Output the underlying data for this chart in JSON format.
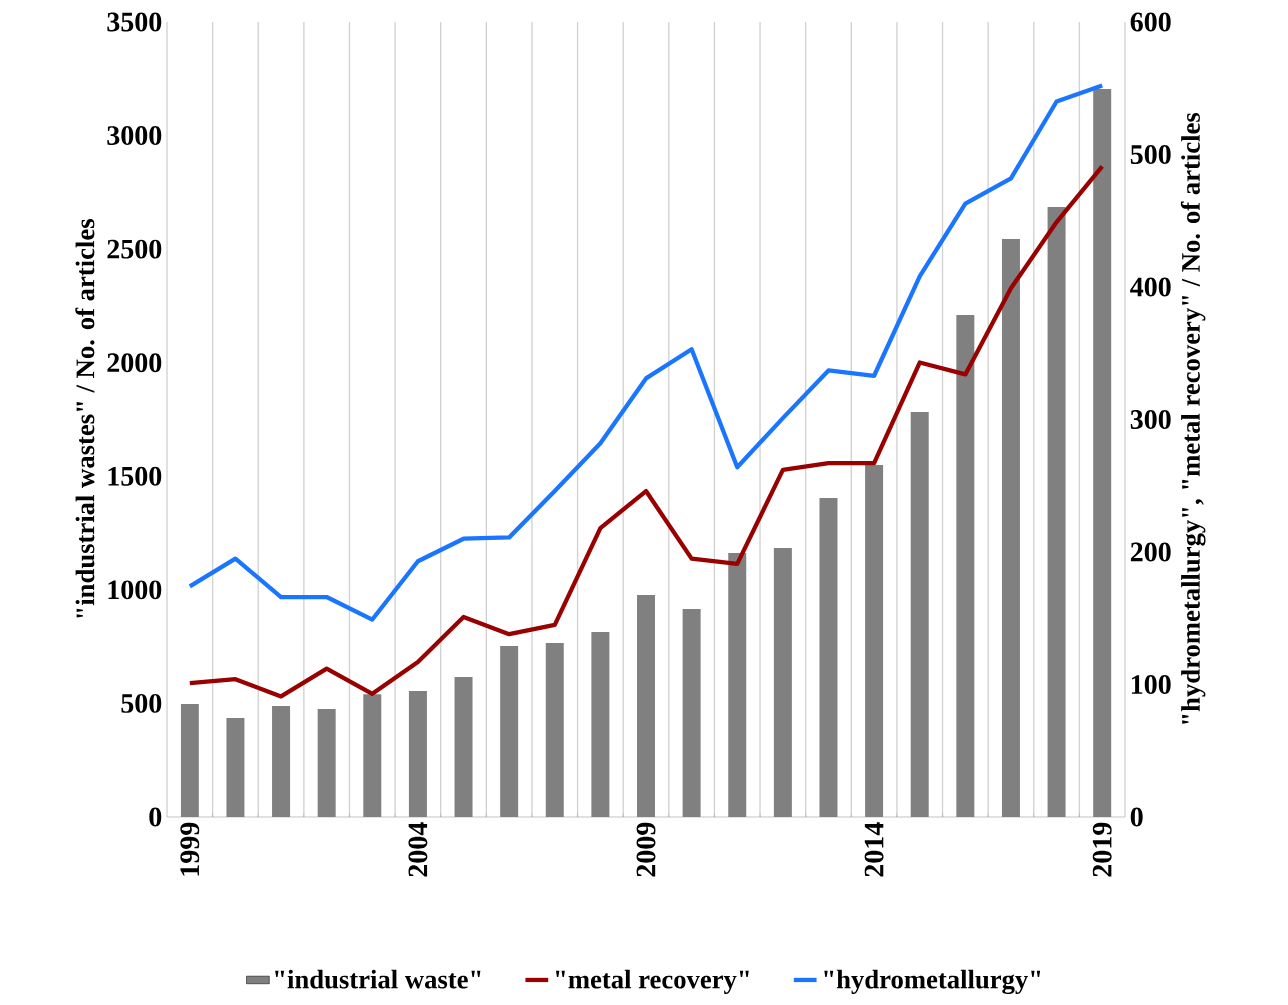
{
  "chart_data": {
    "type": "bar",
    "ylabel": "\"industrial wastes\" / No. of articles",
    "y2label": "\"hydrometallurgy\", \"metal recovery\" / No. of articles",
    "categories": [
      "1999",
      null,
      null,
      null,
      null,
      "2004",
      null,
      null,
      null,
      null,
      "2009",
      null,
      null,
      null,
      null,
      "2014",
      null,
      null,
      null,
      null,
      "2019"
    ],
    "series": [
      {
        "name": "\"industrial waste\"",
        "color": "#808080",
        "values": [
          497,
          436,
          489,
          475,
          540,
          555,
          616,
          753,
          766,
          814,
          977,
          916,
          1162,
          1184,
          1404,
          1550,
          1783,
          2210,
          2545,
          2685,
          3205
        ]
      },
      {
        "name": "\"metal recovery\"",
        "type": "line",
        "axis": "y2",
        "color": "#990000",
        "values": [
          101,
          104,
          91,
          112,
          93,
          117,
          151,
          138,
          145,
          218,
          246,
          195,
          191,
          262,
          267,
          267,
          343,
          334,
          399,
          449,
          491
        ]
      },
      {
        "name": "\"hydrometallurgy\"",
        "type": "line",
        "axis": "y2",
        "color": "#1a75ff",
        "values": [
          174,
          195,
          166,
          166,
          149,
          193,
          210,
          211,
          246,
          282,
          331,
          353,
          264,
          301,
          337,
          333,
          408,
          463,
          482,
          540,
          552
        ]
      }
    ],
    "ylim": [
      0,
      3500
    ],
    "yticks": [
      0,
      500,
      1000,
      1500,
      2000,
      2500,
      3000,
      3500
    ],
    "y2lim": [
      0,
      600
    ],
    "y2ticks": [
      0,
      100,
      200,
      300,
      400,
      500,
      600
    ],
    "grid": "x",
    "legend": "bottom"
  }
}
